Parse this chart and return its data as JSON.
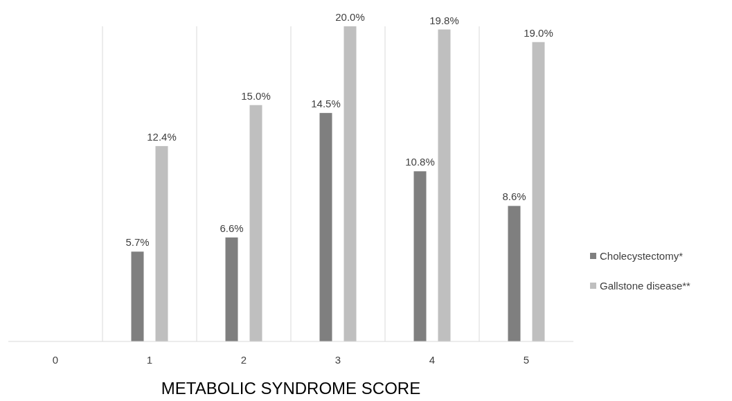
{
  "chart_data": {
    "type": "bar",
    "xlabel": "METABOLIC SYNDROME SCORE",
    "categories": [
      "0",
      "1",
      "2",
      "3",
      "4",
      "5"
    ],
    "series": [
      {
        "name": "Cholecystectomy*",
        "color": "#7f7f7f",
        "values": [
          null,
          5.7,
          6.6,
          14.5,
          10.8,
          8.6
        ],
        "value_labels": [
          null,
          "5.7%",
          "6.6%",
          "14.5%",
          "10.8%",
          "8.6%"
        ]
      },
      {
        "name": "Gallstone disease**",
        "color": "#bfbfbf",
        "values": [
          null,
          12.4,
          15.0,
          20.0,
          19.8,
          19.0
        ],
        "value_labels": [
          null,
          "12.4%",
          "15.0%",
          "20.0%",
          "19.8%",
          "19.0%"
        ]
      }
    ],
    "grid": "x",
    "legend": "right"
  }
}
